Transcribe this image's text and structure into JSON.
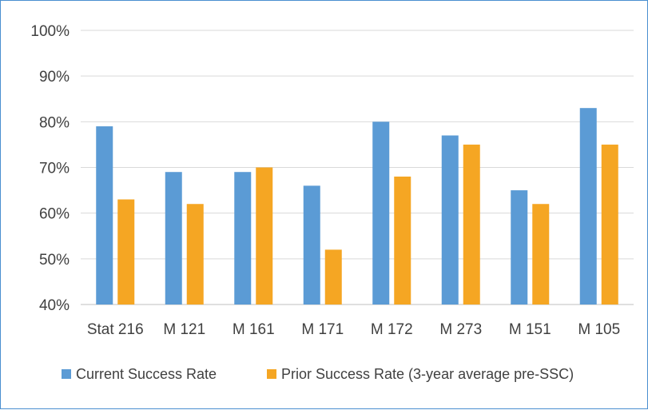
{
  "chart_data": {
    "type": "bar",
    "categories": [
      "Stat 216",
      "M 121",
      "M 161",
      "M 171",
      "M 172",
      "M 273",
      "M 151",
      "M 105"
    ],
    "series": [
      {
        "name": "Current Success Rate",
        "values": [
          79,
          69,
          69,
          66,
          80,
          77,
          65,
          83
        ],
        "color": "#5b9bd5"
      },
      {
        "name": "Prior Success Rate (3-year average pre-SSC)",
        "values": [
          63,
          62,
          70,
          52,
          68,
          75,
          62,
          75
        ],
        "color": "#f5a623"
      }
    ],
    "ylim": [
      40,
      100
    ],
    "yticks": [
      40,
      50,
      60,
      70,
      80,
      90,
      100
    ],
    "ytick_labels": [
      "40%",
      "50%",
      "60%",
      "70%",
      "80%",
      "90%",
      "100%"
    ],
    "grid": true,
    "legend_position": "bottom"
  }
}
